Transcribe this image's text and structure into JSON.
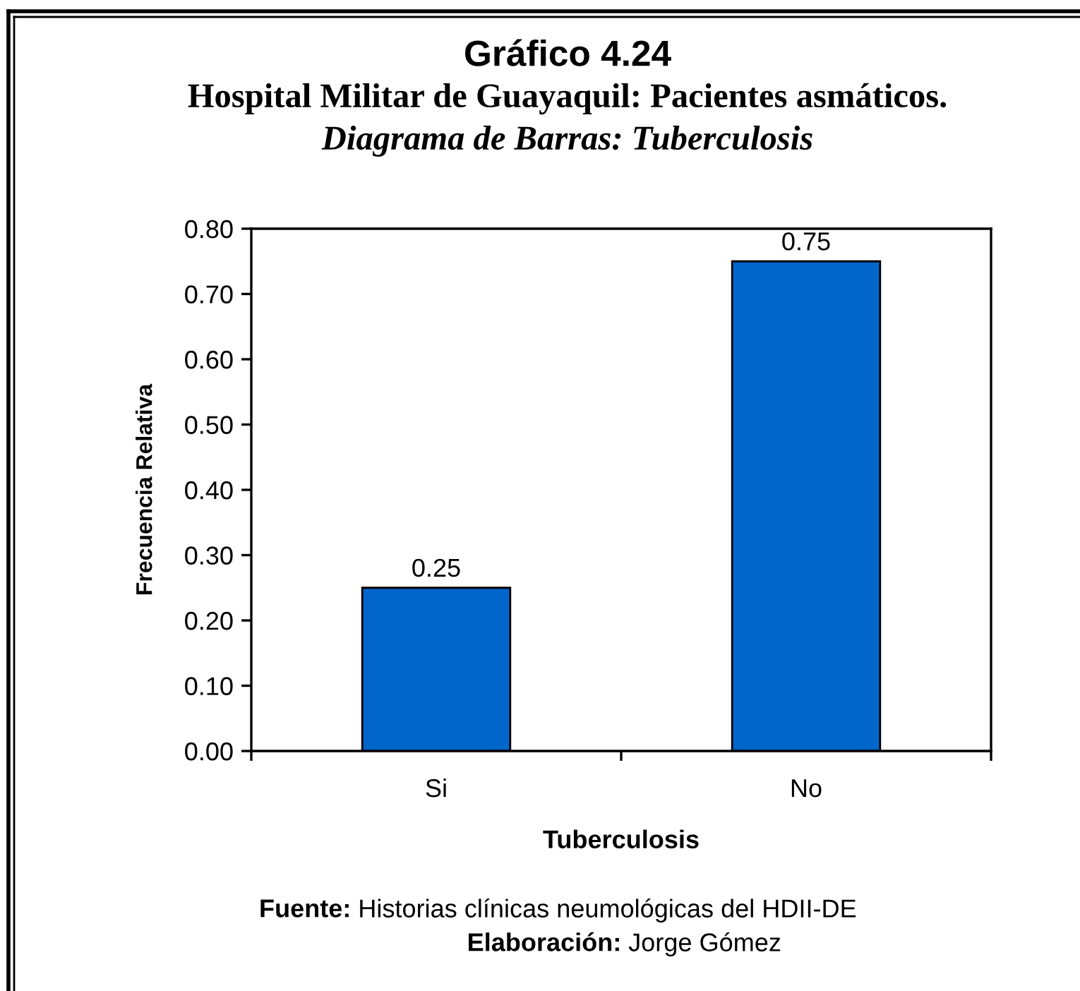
{
  "chart_data": {
    "type": "bar",
    "title": "Gráfico 4.24",
    "subtitle": "Hospital Militar de Guayaquil: Pacientes asmáticos.\nDiagrama de Barras: Tuberculosis",
    "xlabel": "Tuberculosis",
    "ylabel": "Frecuencia Relativa",
    "categories": [
      "Si",
      "No"
    ],
    "values": [
      0.25,
      0.75
    ],
    "color": "#0066cc",
    "ylim": [
      0,
      0.8
    ],
    "yticks": [
      {
        "value": 0,
        "label": "0.00"
      },
      {
        "value": 0.1,
        "label": "0.10"
      },
      {
        "value": 0.2,
        "label": "0.20"
      },
      {
        "value": 0.3,
        "label": "0.30"
      },
      {
        "value": 0.4,
        "label": "0.40"
      },
      {
        "value": 0.5,
        "label": "0.50"
      },
      {
        "value": 0.6,
        "label": "0.60"
      },
      {
        "value": 0.7,
        "label": "0.70"
      },
      {
        "value": 0.8,
        "label": "0.80"
      }
    ],
    "data_labels": true,
    "annotations": [
      "Fuente: Historias clínicas neumológicas del HDII-DE",
      "Elaboración: Jorge Gómez"
    ]
  }
}
